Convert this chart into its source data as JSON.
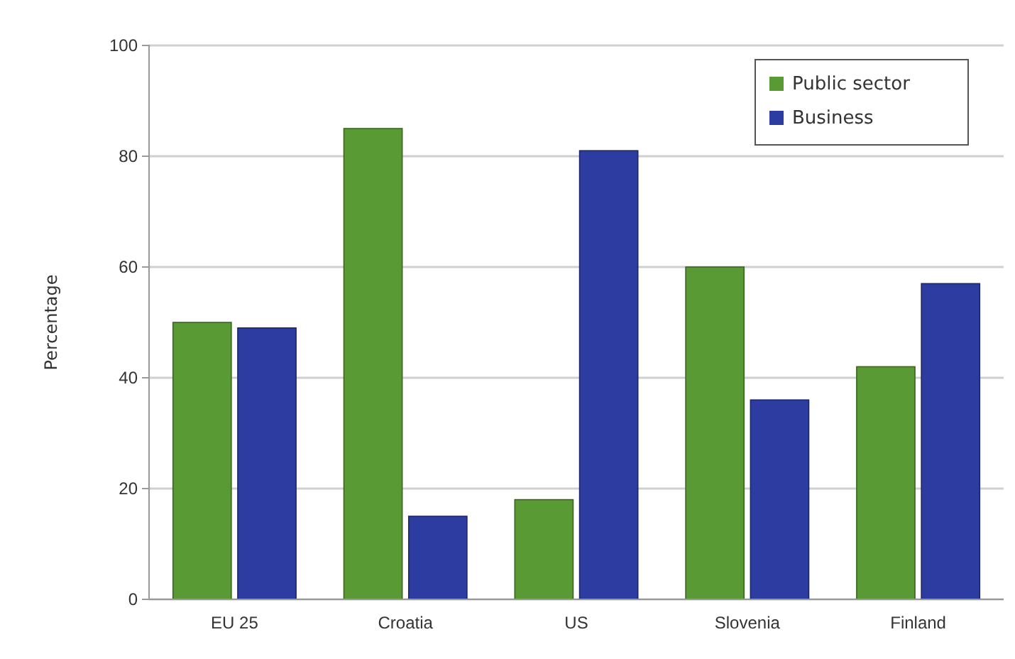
{
  "chart_data": {
    "type": "bar",
    "ylabel": "Percentage",
    "categories": [
      "EU 25",
      "Croatia",
      "US",
      "Slovenia",
      "Finland"
    ],
    "series": [
      {
        "name": "Public sector",
        "color": "#5a9a34",
        "values": [
          50,
          85,
          18,
          60,
          42
        ]
      },
      {
        "name": "Business",
        "color": "#2c3ca0",
        "values": [
          49,
          15,
          81,
          36,
          57
        ]
      }
    ],
    "ylim": [
      0,
      100
    ],
    "yticks": [
      0,
      20,
      40,
      60,
      80,
      100
    ],
    "grid": "y",
    "legend": "top right"
  }
}
